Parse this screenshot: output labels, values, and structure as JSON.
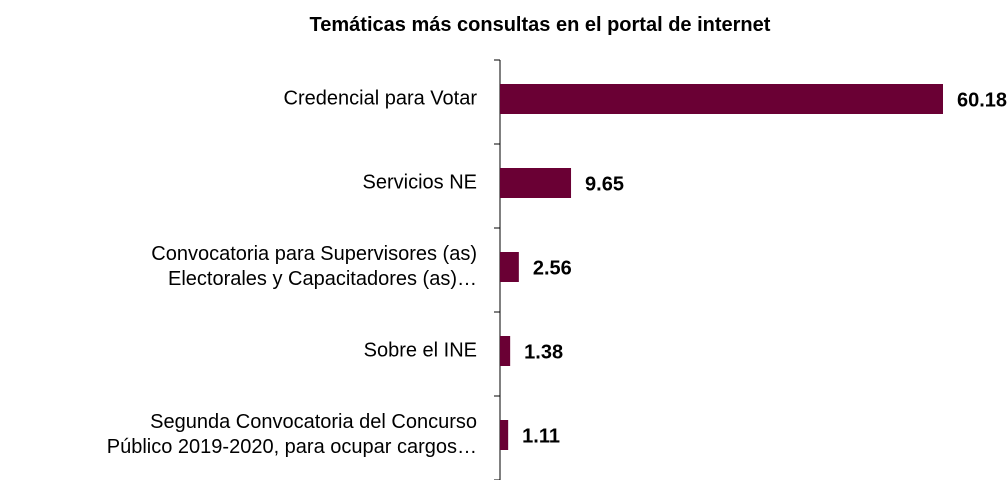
{
  "chart_data": {
    "type": "barh",
    "title": "Temáticas más consultas en el portal de internet",
    "categories": [
      "Credencial para Votar",
      "Servicios NE",
      "Convocatoria para Supervisores (as)\nElectorales y Capacitadores (as)…",
      "Sobre el INE",
      "Segunda Convocatoria del Concurso\nPúblico 2019-2020, para ocupar cargos…"
    ],
    "values": [
      60.18,
      9.65,
      2.56,
      1.38,
      1.11
    ],
    "color": "#6a0034"
  }
}
